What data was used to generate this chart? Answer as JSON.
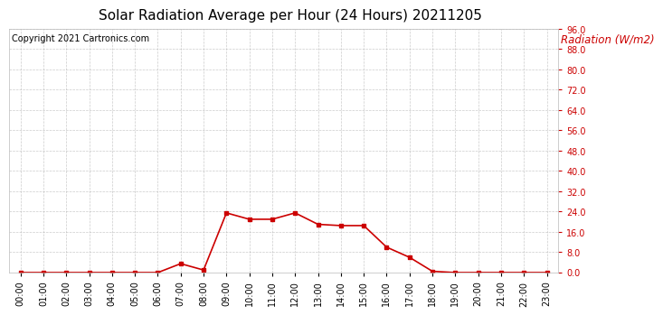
{
  "title": "Solar Radiation Average per Hour (24 Hours) 20211205",
  "copyright_text": "Copyright 2021 Cartronics.com",
  "legend_label": "Radiation (W/m2)",
  "hours": [
    "00:00",
    "01:00",
    "02:00",
    "03:00",
    "04:00",
    "05:00",
    "06:00",
    "07:00",
    "08:00",
    "09:00",
    "10:00",
    "11:00",
    "12:00",
    "13:00",
    "14:00",
    "15:00",
    "16:00",
    "17:00",
    "18:00",
    "19:00",
    "20:00",
    "21:00",
    "22:00",
    "23:00"
  ],
  "values": [
    0.0,
    0.0,
    0.0,
    0.0,
    0.0,
    0.0,
    0.0,
    3.5,
    1.0,
    23.5,
    21.0,
    21.0,
    23.5,
    19.0,
    18.5,
    18.5,
    10.0,
    6.0,
    0.5,
    0.0,
    0.0,
    0.0,
    0.0,
    0.0
  ],
  "line_color": "#cc0000",
  "marker": "s",
  "marker_size": 3,
  "ylim": [
    0.0,
    96.0
  ],
  "yticks": [
    0.0,
    8.0,
    16.0,
    24.0,
    32.0,
    40.0,
    48.0,
    56.0,
    64.0,
    72.0,
    80.0,
    88.0,
    96.0
  ],
  "background_color": "#ffffff",
  "grid_color": "#aaaaaa",
  "title_fontsize": 11,
  "copyright_fontsize": 7,
  "legend_fontsize": 8.5,
  "axis_fontsize": 7,
  "title_color": "#000000",
  "copyright_color": "#000000",
  "legend_color": "#cc0000",
  "yaxis_color": "#cc0000"
}
